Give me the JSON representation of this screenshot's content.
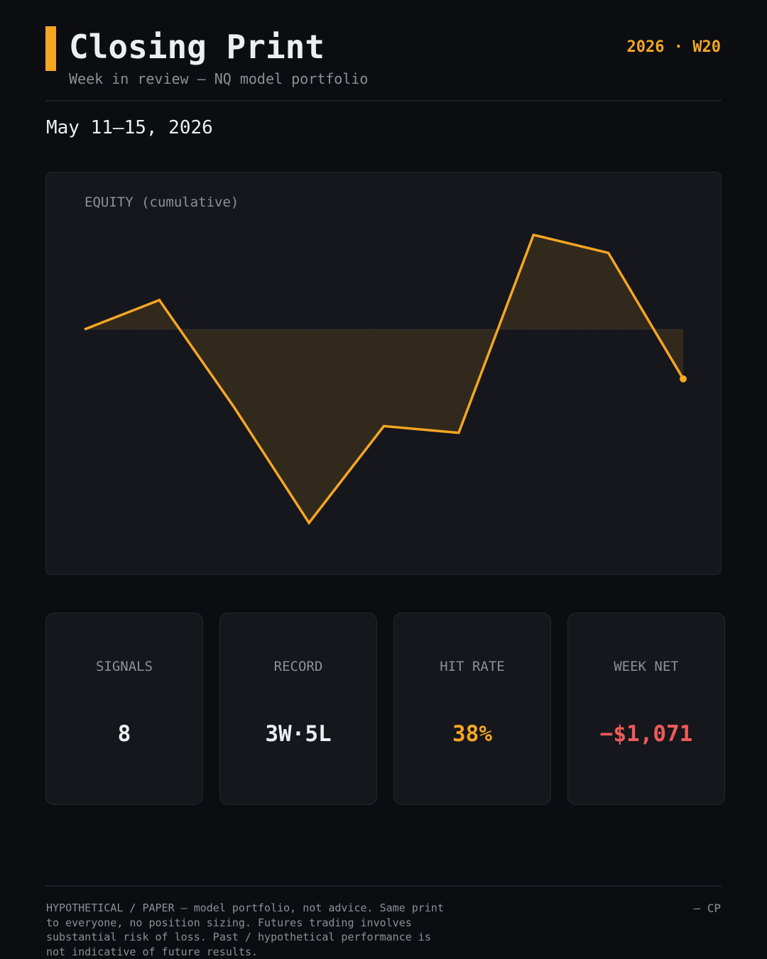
{
  "header": {
    "title": "Closing Print",
    "subtitle": "Week in review — NQ model portfolio",
    "week_tag": "2026 · W20"
  },
  "date_range": "May 11–15, 2026",
  "chart_data": {
    "type": "area",
    "title": "EQUITY (cumulative)",
    "baseline": 0,
    "grid": false,
    "legend": "none",
    "line_color": "#f5a623",
    "values": [
      0,
      195,
      -520,
      -1290,
      -645,
      -690,
      630,
      510,
      -330
    ],
    "note": "values approximate; read from unlabeled chart relative to 0 baseline"
  },
  "stats": [
    {
      "label": "SIGNALS",
      "value": "8",
      "color": "#eceef1"
    },
    {
      "label": "RECORD",
      "value": "3W·5L",
      "color": "#eceef1"
    },
    {
      "label": "HIT RATE",
      "value": "38%",
      "color": "#f5a623"
    },
    {
      "label": "WEEK NET",
      "value": "−$1,071",
      "color": "#f05a5a"
    }
  ],
  "footer": {
    "disclaimer": "HYPOTHETICAL / PAPER — model portfolio, not advice. Same print to everyone, no position sizing. Futures trading involves substantial risk of loss. Past / hypothetical performance is not indicative of future results.",
    "signature": "— CP"
  }
}
